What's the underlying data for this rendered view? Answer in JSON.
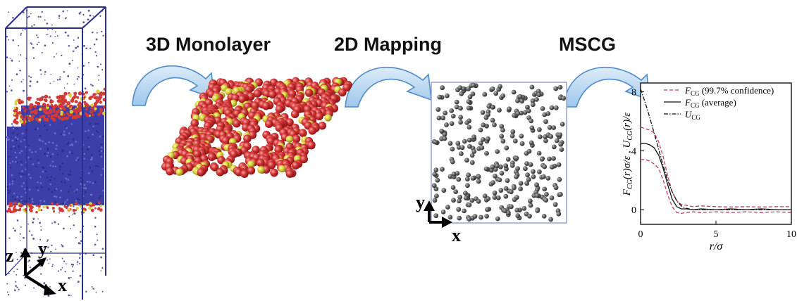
{
  "titles": {
    "monolayer": "3D Monolayer",
    "mapping": "2D Mapping",
    "mscg": "MSCG"
  },
  "axes3d": {
    "z": "z",
    "y": "y",
    "x": "x"
  },
  "axes2d": {
    "y": "y",
    "x": "x"
  },
  "colors": {
    "box_edge": "#2b2f8c",
    "water": "#3c3fa8",
    "headgroup": "#d23a3a",
    "tail": "#d8d23a",
    "cg_particle": "#5a5a5a",
    "arrow_fill": "#b9d7ef",
    "arrow_edge": "#4f8cc9",
    "confidence": "#c23a6a"
  },
  "chart_data": {
    "type": "line",
    "title": "",
    "xlabel": "r/σ",
    "ylabel": "F_CG(r)σ/ε , U_CG(r)/ε",
    "xlim": [
      0,
      10
    ],
    "ylim": [
      -1,
      8.6
    ],
    "xticks": [
      "0",
      "5",
      "10"
    ],
    "yticks": [
      "0",
      "4",
      "8"
    ],
    "legend": {
      "placement": "top-right",
      "entries": [
        {
          "symbol": "F",
          "sub": "CG",
          "note": "(99.7% confidence)"
        },
        {
          "symbol": "F",
          "sub": "CG",
          "note": "(average)"
        },
        {
          "symbol": "U",
          "sub": "CG",
          "note": ""
        }
      ]
    },
    "series": [
      {
        "style": "dashed-pink",
        "x": [
          0.0,
          0.3,
          0.6,
          0.9,
          1.2,
          1.5,
          1.8,
          2.1,
          2.4,
          2.7,
          3.0,
          3.5,
          4.0,
          5.0,
          6.0,
          7.0,
          8.0,
          9.0,
          10.0
        ],
        "values": [
          5.6,
          5.5,
          5.4,
          5.2,
          4.6,
          3.6,
          2.3,
          1.2,
          0.6,
          0.35,
          0.3,
          0.2,
          0.25,
          0.2,
          0.18,
          0.2,
          0.18,
          0.2,
          0.2
        ]
      },
      {
        "style": "dashed-pink",
        "x": [
          0.0,
          0.3,
          0.6,
          0.9,
          1.2,
          1.5,
          1.8,
          2.1,
          2.4,
          2.7,
          3.0,
          3.5,
          4.0,
          5.0,
          6.0,
          7.0,
          8.0,
          9.0,
          10.0
        ],
        "values": [
          3.4,
          3.4,
          3.3,
          3.1,
          2.8,
          2.0,
          1.0,
          0.2,
          -0.2,
          -0.25,
          -0.2,
          -0.15,
          -0.2,
          -0.15,
          -0.2,
          -0.15,
          -0.2,
          -0.15,
          -0.2
        ]
      },
      {
        "style": "solid-black",
        "x": [
          0.0,
          0.3,
          0.6,
          0.9,
          1.2,
          1.5,
          1.8,
          2.1,
          2.4,
          2.7,
          3.0,
          3.5,
          4.0,
          5.0,
          6.0,
          7.0,
          8.0,
          9.0,
          10.0
        ],
        "values": [
          4.5,
          4.5,
          4.4,
          4.2,
          3.7,
          2.8,
          1.7,
          0.7,
          0.2,
          0.05,
          0.05,
          0.0,
          0.05,
          0.0,
          0.05,
          0.0,
          0.05,
          0.0,
          0.0
        ]
      },
      {
        "style": "dashdot-black",
        "x": [
          0.0,
          0.3,
          0.6,
          0.9,
          1.2,
          1.5,
          1.8,
          2.1,
          2.4,
          2.7,
          3.0,
          3.5,
          4.0,
          5.0,
          6.0,
          7.0,
          8.0,
          9.0,
          10.0
        ],
        "values": [
          8.2,
          7.3,
          6.3,
          5.2,
          4.1,
          3.0,
          2.0,
          1.2,
          0.6,
          0.25,
          0.1,
          0.0,
          0.0,
          0.0,
          0.0,
          0.0,
          0.0,
          0.0,
          0.0
        ]
      }
    ]
  }
}
